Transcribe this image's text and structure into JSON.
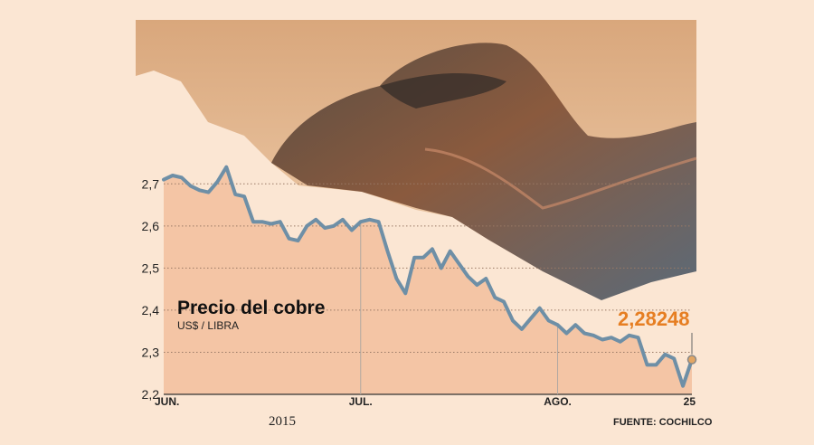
{
  "chart_data": {
    "type": "area",
    "title": "Precio del cobre",
    "subtitle": "US$ / LIBRA",
    "year_label": "2015",
    "source": "FUENTE: COCHILCO",
    "last_value_label": "2,28248",
    "ylim": [
      2.2,
      2.75
    ],
    "yticks": [
      "2,7",
      "2,6",
      "2,5",
      "2,4",
      "2,3",
      "2,2"
    ],
    "yticks_values": [
      2.7,
      2.6,
      2.5,
      2.4,
      2.3,
      2.2
    ],
    "xticks": [
      "JUN.",
      "JUL.",
      "AGO.",
      "25"
    ],
    "xtick_index": [
      0,
      22,
      44,
      58
    ],
    "values": [
      2.71,
      2.72,
      2.715,
      2.695,
      2.685,
      2.68,
      2.705,
      2.74,
      2.675,
      2.67,
      2.61,
      2.61,
      2.605,
      2.61,
      2.57,
      2.565,
      2.6,
      2.615,
      2.595,
      2.6,
      2.615,
      2.59,
      2.61,
      2.615,
      2.61,
      2.54,
      2.475,
      2.44,
      2.525,
      2.525,
      2.545,
      2.5,
      2.54,
      2.51,
      2.48,
      2.46,
      2.475,
      2.43,
      2.42,
      2.375,
      2.355,
      2.38,
      2.405,
      2.375,
      2.365,
      2.345,
      2.365,
      2.345,
      2.34,
      2.33,
      2.335,
      2.325,
      2.34,
      2.335,
      2.27,
      2.27,
      2.295,
      2.285,
      2.22,
      2.28248
    ],
    "colors": {
      "line": "#6e8fa6",
      "fill": "#f4c5a5",
      "background": "#fbe6d3",
      "accent": "#e67e22"
    },
    "grid": "dotted-horizontal"
  }
}
